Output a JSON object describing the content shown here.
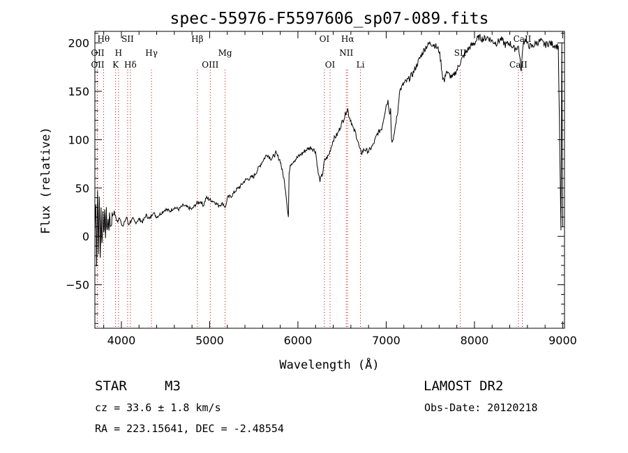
{
  "chart_data": {
    "type": "line",
    "title": "spec-55976-F5597606_sp07-089.fits",
    "xlabel": "Wavelength (Å)",
    "ylabel": "Flux (relative)",
    "xlim": [
      3700,
      9020
    ],
    "ylim": [
      -95,
      212
    ],
    "xticks": [
      4000,
      5000,
      6000,
      7000,
      8000,
      9000
    ],
    "yticks": [
      -50,
      0,
      50,
      100,
      150,
      200
    ],
    "grid": false,
    "series": [
      {
        "values_x": [
          3700,
          3710,
          3720,
          3730,
          3740,
          3750,
          3760,
          3770,
          3780,
          3790,
          3800,
          3810,
          3820,
          3830,
          3840,
          3850,
          3860,
          3870,
          3880,
          3890,
          3900,
          3920,
          3940,
          3960,
          3980,
          4000,
          4020,
          4040,
          4060,
          4080,
          4100,
          4130,
          4160,
          4200,
          4240,
          4280,
          4320,
          4360,
          4400,
          4450,
          4500,
          4550,
          4600,
          4650,
          4700,
          4750,
          4800,
          4850,
          4900,
          4930,
          4960,
          5000,
          5050,
          5100,
          5150,
          5180,
          5200,
          5250,
          5300,
          5350,
          5400,
          5450,
          5500,
          5550,
          5600,
          5650,
          5700,
          5750,
          5800,
          5840,
          5860,
          5880,
          5892,
          5900,
          5920,
          5950,
          6000,
          6050,
          6100,
          6150,
          6200,
          6230,
          6250,
          6280,
          6300,
          6350,
          6400,
          6450,
          6500,
          6530,
          6550,
          6563,
          6580,
          6600,
          6630,
          6650,
          6680,
          6700,
          6720,
          6750,
          6800,
          6850,
          6900,
          6950,
          7000,
          7020,
          7040,
          7050,
          7060,
          7080,
          7100,
          7130,
          7150,
          7200,
          7250,
          7300,
          7350,
          7400,
          7450,
          7500,
          7550,
          7600,
          7620,
          7640,
          7660,
          7680,
          7700,
          7750,
          7800,
          7850,
          7900,
          7950,
          8000,
          8050,
          8100,
          8150,
          8200,
          8250,
          8300,
          8350,
          8400,
          8450,
          8500,
          8530,
          8550,
          8580,
          8600,
          8650,
          8700,
          8750,
          8800,
          8850,
          8900,
          8950,
          8980,
          8990,
          9000
        ],
        "values_y": [
          5,
          40,
          -30,
          55,
          -20,
          45,
          -25,
          30,
          -10,
          25,
          10,
          20,
          5,
          22,
          8,
          15,
          12,
          20,
          10,
          18,
          22,
          25,
          18,
          15,
          20,
          14,
          10,
          16,
          20,
          12,
          15,
          18,
          14,
          18,
          15,
          22,
          18,
          25,
          20,
          24,
          28,
          26,
          30,
          28,
          32,
          30,
          28,
          34,
          36,
          32,
          40,
          38,
          36,
          32,
          34,
          30,
          40,
          42,
          48,
          52,
          58,
          60,
          62,
          70,
          78,
          85,
          80,
          86,
          78,
          60,
          48,
          30,
          20,
          65,
          75,
          78,
          82,
          86,
          90,
          92,
          88,
          65,
          58,
          65,
          78,
          84,
          100,
          106,
          118,
          124,
          130,
          132,
          124,
          120,
          110,
          108,
          98,
          90,
          86,
          90,
          88,
          94,
          106,
          112,
          136,
          140,
          128,
          132,
          100,
          98,
          112,
          128,
          150,
          158,
          162,
          168,
          178,
          188,
          196,
          200,
          198,
          192,
          180,
          165,
          160,
          172,
          168,
          164,
          172,
          182,
          190,
          196,
          200,
          206,
          204,
          206,
          202,
          200,
          204,
          198,
          200,
          194,
          196,
          170,
          200,
          204,
          198,
          196,
          200,
          202,
          198,
          200,
          198,
          196,
          5,
          198,
          10
        ]
      }
    ],
    "spectral_lines": [
      {
        "name": "Hθ",
        "wavelength": 3798,
        "row": 0
      },
      {
        "name": "OII",
        "wavelength": 3727,
        "row": 1
      },
      {
        "name": "OII",
        "wavelength": 3729,
        "row": 2
      },
      {
        "name": "H",
        "wavelength": 3968,
        "row": 1
      },
      {
        "name": "K",
        "wavelength": 3934,
        "row": 2
      },
      {
        "name": "SII",
        "wavelength": 4071,
        "row": 0
      },
      {
        "name": "Hδ",
        "wavelength": 4102,
        "row": 2
      },
      {
        "name": "Hγ",
        "wavelength": 4341,
        "row": 1
      },
      {
        "name": "Hβ",
        "wavelength": 4861,
        "row": 0
      },
      {
        "name": "Mg",
        "wavelength": 5175,
        "row": 1
      },
      {
        "name": "OIII",
        "wavelength": 5007,
        "row": 2
      },
      {
        "name": "OI",
        "wavelength": 6300,
        "row": 0
      },
      {
        "name": "OI",
        "wavelength": 6364,
        "row": 2
      },
      {
        "name": "Hα",
        "wavelength": 6563,
        "row": 0
      },
      {
        "name": "NII",
        "wavelength": 6548,
        "row": 1
      },
      {
        "name": "Li",
        "wavelength": 6708,
        "row": 2
      },
      {
        "name": "SII",
        "wavelength": 7839,
        "row": 1
      },
      {
        "name": "CaII",
        "wavelength": 8542,
        "row": 0
      },
      {
        "name": "CaII",
        "wavelength": 8498,
        "row": 2
      }
    ],
    "line_color": "#000000",
    "marker_color": "#cc0000"
  },
  "info": {
    "object_class": "STAR",
    "subclass": "M3",
    "survey": "LAMOST DR2",
    "cz": "cz = 33.6 ± 1.8 km/s",
    "obs_date": "Obs-Date: 20120218",
    "coords": "RA = 223.15641, DEC =  -2.48554"
  }
}
